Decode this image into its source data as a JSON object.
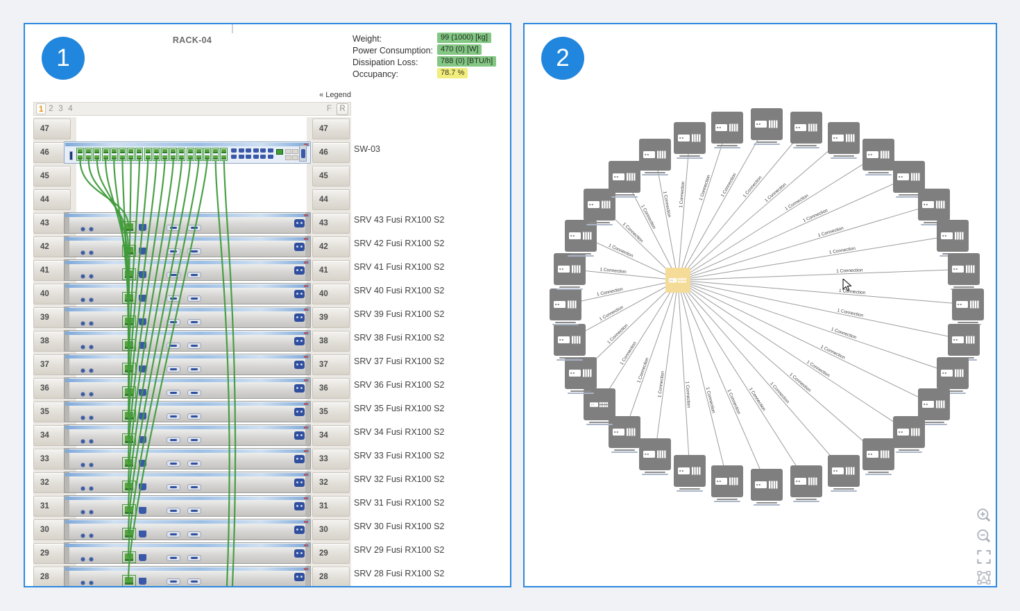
{
  "panel1": {
    "badge": "1",
    "title": "RACK-04",
    "legend_link": "« Legend",
    "tabs": [
      "1",
      "2",
      "3",
      "4"
    ],
    "active_tab": "1",
    "side_buttons": [
      "F",
      "R"
    ],
    "stats": [
      {
        "label": "Weight:",
        "value": "99 (1000) [kg]",
        "status": "green"
      },
      {
        "label": "Power Consumption:",
        "value": "470 (0) [W]",
        "status": "green"
      },
      {
        "label": "Dissipation Loss:",
        "value": "788 (0) [BTU/h]",
        "status": "green"
      },
      {
        "label": "Occupancy:",
        "value": "78.7 %",
        "status": "yellow"
      }
    ],
    "units": [
      {
        "u": "47",
        "type": "empty",
        "label": ""
      },
      {
        "u": "46",
        "type": "switch",
        "label": "SW-03"
      },
      {
        "u": "45",
        "type": "empty",
        "label": ""
      },
      {
        "u": "44",
        "type": "empty",
        "label": ""
      },
      {
        "u": "43",
        "type": "server",
        "label": "SRV 43 Fusi RX100 S2"
      },
      {
        "u": "42",
        "type": "server",
        "label": "SRV 42 Fusi RX100 S2"
      },
      {
        "u": "41",
        "type": "server",
        "label": "SRV 41 Fusi RX100 S2"
      },
      {
        "u": "40",
        "type": "server",
        "label": "SRV 40 Fusi RX100 S2"
      },
      {
        "u": "39",
        "type": "server",
        "label": "SRV 39 Fusi RX100 S2"
      },
      {
        "u": "38",
        "type": "server",
        "label": "SRV 38 Fusi RX100 S2"
      },
      {
        "u": "37",
        "type": "server",
        "label": "SRV 37 Fusi RX100 S2"
      },
      {
        "u": "36",
        "type": "server",
        "label": "SRV 36 Fusi RX100 S2"
      },
      {
        "u": "35",
        "type": "server",
        "label": "SRV 35 Fusi RX100 S2"
      },
      {
        "u": "34",
        "type": "server",
        "label": "SRV 34 Fusi RX100 S2"
      },
      {
        "u": "33",
        "type": "server",
        "label": "SRV 33 Fusi RX100 S2"
      },
      {
        "u": "32",
        "type": "server",
        "label": "SRV 32 Fusi RX100 S2"
      },
      {
        "u": "31",
        "type": "server",
        "label": "SRV 31 Fusi RX100 S2"
      },
      {
        "u": "30",
        "type": "server",
        "label": "SRV 30 Fusi RX100 S2"
      },
      {
        "u": "29",
        "type": "server",
        "label": "SRV 29 Fusi RX100 S2"
      },
      {
        "u": "28",
        "type": "server",
        "label": "SRV 28 Fusi RX100 S2"
      }
    ],
    "colors": {
      "cable": "#3f9b3b",
      "port_green": "#3f9b35",
      "badge_green": "#84c684",
      "badge_yellow": "#f2ee7d",
      "accent": "#2b87de"
    }
  },
  "panel2": {
    "badge": "2",
    "edge_label": "1 Connection",
    "node_count": 32,
    "switch_node_index": 21,
    "hub_type": "switch",
    "toolbar_icons": [
      "zoom-in-icon",
      "zoom-out-icon",
      "fit-view-icon",
      "fit-labels-icon"
    ],
    "colors": {
      "node_gray": "#7f7f7f",
      "hub_yellow": "#f4db97",
      "edge": "#9b9b9b"
    }
  }
}
